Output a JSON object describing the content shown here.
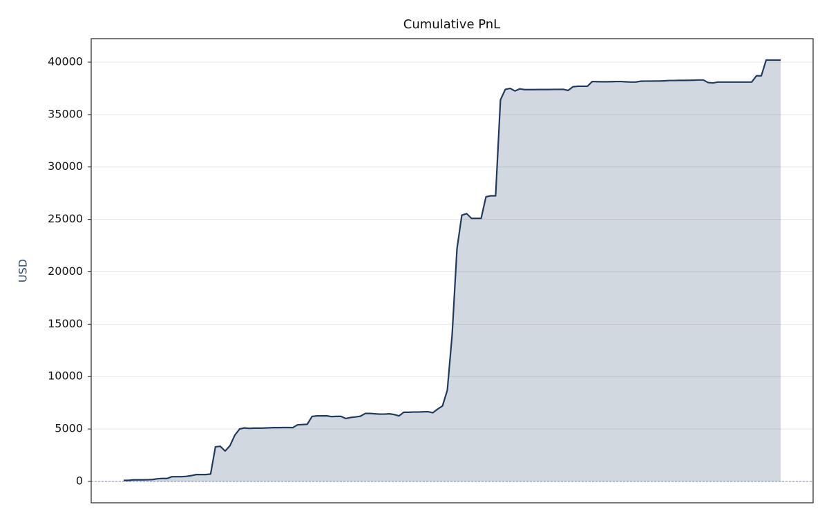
{
  "chart_data": {
    "type": "area",
    "title": "Cumulative PnL",
    "ylabel": "USD",
    "values": [
      100,
      100,
      150,
      150,
      150,
      160,
      180,
      250,
      280,
      280,
      450,
      450,
      450,
      480,
      550,
      650,
      650,
      650,
      700,
      3300,
      3350,
      2900,
      3400,
      4400,
      5000,
      5100,
      5060,
      5080,
      5080,
      5090,
      5110,
      5130,
      5130,
      5140,
      5140,
      5130,
      5400,
      5420,
      5450,
      6200,
      6250,
      6250,
      6260,
      6180,
      6200,
      6200,
      6000,
      6100,
      6150,
      6220,
      6480,
      6480,
      6450,
      6420,
      6420,
      6450,
      6380,
      6250,
      6600,
      6600,
      6620,
      6620,
      6640,
      6650,
      6550,
      6900,
      7200,
      8700,
      14000,
      22200,
      25400,
      25550,
      25100,
      25100,
      25100,
      27150,
      27250,
      27250,
      36400,
      37400,
      37500,
      37250,
      37450,
      37380,
      37380,
      37380,
      37390,
      37390,
      37390,
      37400,
      37400,
      37410,
      37300,
      37650,
      37700,
      37700,
      37700,
      38150,
      38140,
      38130,
      38130,
      38140,
      38150,
      38150,
      38120,
      38100,
      38100,
      38180,
      38190,
      38190,
      38200,
      38200,
      38220,
      38250,
      38250,
      38260,
      38260,
      38270,
      38280,
      38300,
      38300,
      38050,
      38020,
      38100,
      38100,
      38100,
      38100,
      38100,
      38100,
      38100,
      38100,
      38700,
      38700,
      40200,
      40200,
      40200,
      40200
    ],
    "color": "#1f3a5f",
    "ylim": [
      -2043,
      42240
    ],
    "yticks": [
      0,
      5000,
      10000,
      15000,
      20000,
      25000,
      30000,
      35000,
      40000
    ],
    "grid": true
  }
}
